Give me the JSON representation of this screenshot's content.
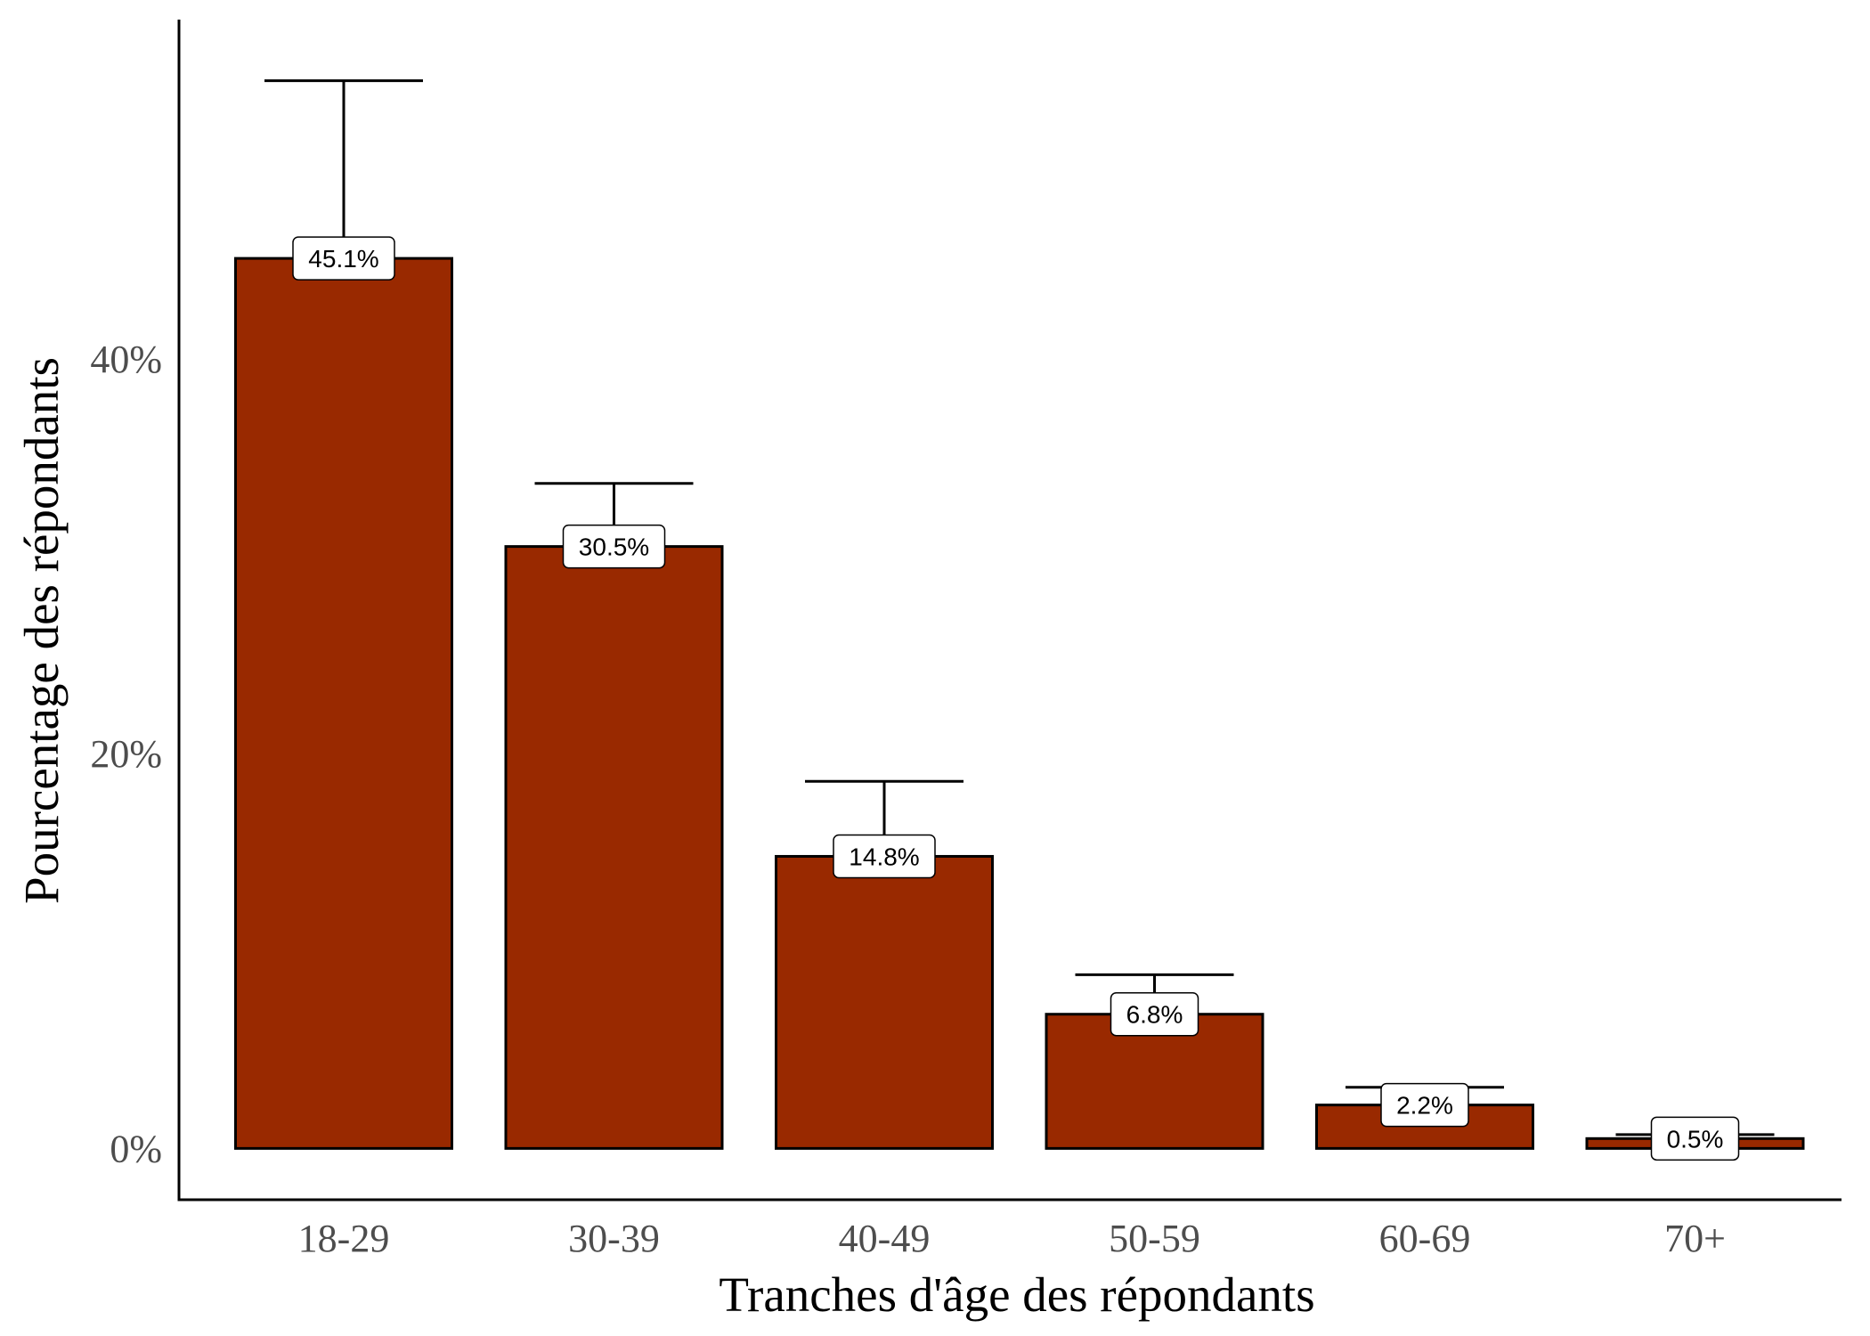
{
  "chart_data": {
    "type": "bar",
    "categories": [
      "18-29",
      "30-39",
      "40-49",
      "50-59",
      "60-69",
      "70+"
    ],
    "values": [
      45.1,
      30.5,
      14.8,
      6.8,
      2.2,
      0.5
    ],
    "data_labels": [
      "45.1%",
      "30.5%",
      "14.8%",
      "6.8%",
      "2.2%",
      "0.5%"
    ],
    "error_upper": [
      54.1,
      33.7,
      18.6,
      8.8,
      3.1,
      0.7
    ],
    "xlabel": "Tranches d'âge des répondants",
    "ylabel": "Pourcentage des répondants",
    "yticks": [
      0,
      20,
      40
    ],
    "ytick_labels": [
      "0%",
      "20%",
      "40%"
    ],
    "ylim": [
      -2.6,
      57.2
    ],
    "grid": false,
    "legend": "none",
    "colors": {
      "bar_fill": "#992900",
      "bar_stroke": "#000000",
      "label_fill": "#ffffff"
    }
  }
}
